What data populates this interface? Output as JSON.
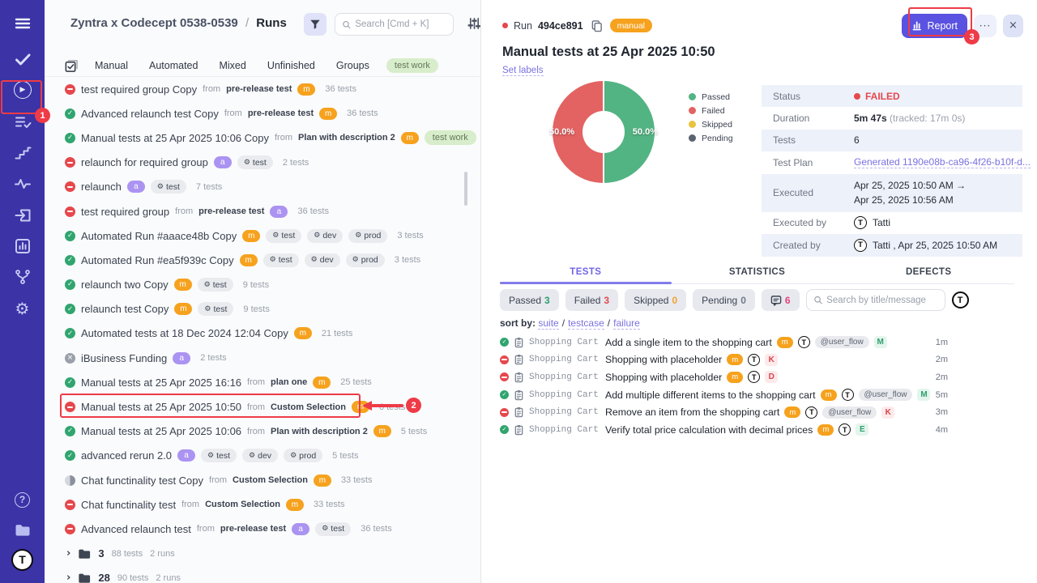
{
  "icons": {
    "check": "✓",
    "close": "×",
    "chevron_right": "›",
    "more_dots": "···",
    "play": "▶",
    "gear": "⚙",
    "question": "?",
    "avatar_letter": "T"
  },
  "annotations": {
    "step1": "1",
    "step2": "2",
    "step3": "3"
  },
  "left_panel": {
    "header": {
      "project": "Zyntra x Codecept 0538-0539",
      "separator": "/",
      "section": "Runs",
      "search_placeholder": "Search [Cmd + K]"
    },
    "tabs": [
      "Manual",
      "Automated",
      "Mixed",
      "Unfinished",
      "Groups"
    ],
    "tag_filter": "test work",
    "from_label": "from",
    "runs": [
      {
        "status": "failed",
        "name": "test required group Copy",
        "from": "pre-release test",
        "type": "m",
        "envs": [],
        "tag": null,
        "tests": "36 tests"
      },
      {
        "status": "passed",
        "name": "Advanced relaunch test Copy",
        "from": "pre-release test",
        "type": "m",
        "envs": [],
        "tag": null,
        "tests": "36 tests"
      },
      {
        "status": "passed",
        "name": "Manual tests at 25 Apr 2025 10:06 Copy",
        "from": "Plan with description 2",
        "type": "m",
        "envs": [],
        "tag": "test work",
        "tests": "5 tests"
      },
      {
        "status": "failed",
        "name": "relaunch for required group",
        "from": null,
        "type": "a",
        "envs": [
          "test"
        ],
        "tag": null,
        "tests": "2 tests"
      },
      {
        "status": "failed",
        "name": "relaunch",
        "from": null,
        "type": "a",
        "envs": [
          "test"
        ],
        "tag": null,
        "tests": "7 tests"
      },
      {
        "status": "failed",
        "name": "test required group",
        "from": "pre-release test",
        "type": "a",
        "envs": [],
        "tag": null,
        "tests": "36 tests"
      },
      {
        "status": "passed",
        "name": "Automated Run #aaace48b Copy",
        "from": null,
        "type": "m",
        "envs": [
          "test",
          "dev",
          "prod"
        ],
        "tag": null,
        "tests": "3 tests"
      },
      {
        "status": "passed",
        "name": "Automated Run #ea5f939c Copy",
        "from": null,
        "type": "m",
        "envs": [
          "test",
          "dev",
          "prod"
        ],
        "tag": null,
        "tests": "3 tests"
      },
      {
        "status": "passed",
        "name": "relaunch two Copy",
        "from": null,
        "type": "m",
        "envs": [
          "test"
        ],
        "tag": null,
        "tests": "9 tests"
      },
      {
        "status": "passed",
        "name": "relaunch test Copy",
        "from": null,
        "type": "m",
        "envs": [
          "test"
        ],
        "tag": null,
        "tests": "9 tests"
      },
      {
        "status": "passed",
        "name": "Automated tests at 18 Dec 2024 12:04 Copy",
        "from": null,
        "type": "m",
        "envs": [],
        "tag": null,
        "tests": "21 tests"
      },
      {
        "status": "canceled",
        "name": "iBusiness Funding",
        "from": null,
        "type": "a",
        "envs": [],
        "tag": null,
        "tests": "2 tests"
      },
      {
        "status": "passed",
        "name": "Manual tests at 25 Apr 2025 16:16",
        "from": "plan one",
        "type": "m",
        "envs": [],
        "tag": null,
        "tests": "25 tests"
      },
      {
        "status": "failed",
        "name": "Manual tests at 25 Apr 2025 10:50",
        "from": "Custom Selection",
        "type": "m",
        "envs": [],
        "tag": null,
        "tests": "6 tests",
        "highlight": true
      },
      {
        "status": "passed",
        "name": "Manual tests at 25 Apr 2025 10:06",
        "from": "Plan with description 2",
        "type": "m",
        "envs": [],
        "tag": null,
        "tests": "5 tests"
      },
      {
        "status": "passed",
        "name": "advanced rerun 2.0",
        "from": null,
        "type": "a",
        "envs": [
          "test",
          "dev",
          "prod"
        ],
        "tag": null,
        "tests": "5 tests"
      },
      {
        "status": "partial",
        "name": "Chat functinality test Copy",
        "from": "Custom Selection",
        "type": "m",
        "envs": [],
        "tag": null,
        "tests": "33 tests"
      },
      {
        "status": "failed",
        "name": "Chat functinality test",
        "from": "Custom Selection",
        "type": "m",
        "envs": [],
        "tag": null,
        "tests": "33 tests"
      },
      {
        "status": "failed",
        "name": "Advanced relaunch test",
        "from": "pre-release test",
        "type": "a",
        "envs": [
          "test"
        ],
        "tag": null,
        "tests": "36 tests"
      }
    ],
    "folders": [
      {
        "name": "3",
        "tests": "88 tests",
        "runs": "2 runs"
      },
      {
        "name": "28",
        "tests": "90 tests",
        "runs": "2 runs"
      }
    ]
  },
  "right_panel": {
    "run_label": "Run",
    "run_id": "494ce891",
    "type_badge": "manual",
    "report_button": "Report",
    "title": "Manual tests at 25 Apr 2025 10:50",
    "set_labels": "Set labels",
    "chart_data": {
      "type": "pie",
      "title": "Run results donut",
      "labels": [
        "Passed",
        "Failed",
        "Skipped",
        "Pending"
      ],
      "values": [
        50.0,
        50.0,
        0.0,
        0.0
      ],
      "colors": [
        "#53b483",
        "#e36262",
        "#e8c33d",
        "#5b6370"
      ],
      "slice_labels": [
        "50.0%",
        "50.0%"
      ],
      "legend_position": "right"
    },
    "info": [
      {
        "label": "Status",
        "type": "status",
        "text": "FAILED"
      },
      {
        "label": "Duration",
        "type": "duration",
        "main": "5m 47s",
        "note": "(tracked: 17m 0s)"
      },
      {
        "label": "Tests",
        "type": "text",
        "text": "6"
      },
      {
        "label": "Test Plan",
        "type": "link",
        "text": "Generated 1190e08b-ca96-4f26-b10f-d..."
      },
      {
        "label": "Executed",
        "type": "range",
        "line1": "Apr 25, 2025 10:50 AM →",
        "line2": "Apr 25, 2025 10:56 AM"
      },
      {
        "label": "Executed by",
        "type": "user",
        "text": "Tatti"
      },
      {
        "label": "Created by",
        "type": "user",
        "text": "Tatti , Apr 25, 2025 10:50 AM"
      }
    ],
    "tabs": [
      {
        "label": "TESTS",
        "active": true
      },
      {
        "label": "STATISTICS",
        "active": false
      },
      {
        "label": "DEFECTS",
        "active": false
      }
    ],
    "filters": [
      {
        "label": "Passed",
        "count": "3",
        "color": "#2f9e6e"
      },
      {
        "label": "Failed",
        "count": "3",
        "color": "#e0484f"
      },
      {
        "label": "Skipped",
        "count": "0",
        "color": "#f0a32e"
      },
      {
        "label": "Pending",
        "count": "0",
        "color": "#737a86"
      }
    ],
    "comment_filter": {
      "count": "6",
      "color": "#e0447d"
    },
    "search_placeholder": "Search by title/message",
    "sort": {
      "label": "sort by:",
      "separator": "/",
      "options": [
        "suite",
        "testcase",
        "failure"
      ]
    },
    "tests": [
      {
        "status": "passed",
        "suite": "Shopping Cart...",
        "title": "Add a single item to the shopping cart",
        "type": "m",
        "avatar": true,
        "tag": "@user_flow",
        "letter": "M",
        "letter_color": "green",
        "duration": "1m"
      },
      {
        "status": "failed",
        "suite": "Shopping Cart...",
        "title": "Shopping with placeholder",
        "type": "m",
        "avatar": true,
        "tag": null,
        "letter": "K",
        "letter_color": "red",
        "duration": "2m"
      },
      {
        "status": "failed",
        "suite": "Shopping Cart...",
        "title": "Shopping with placeholder",
        "type": "m",
        "avatar": true,
        "tag": null,
        "letter": "D",
        "letter_color": "red",
        "duration": "2m"
      },
      {
        "status": "passed",
        "suite": "Shopping Cart...",
        "title": "Add multiple different items to the shopping cart",
        "type": "m",
        "avatar": true,
        "tag": "@user_flow",
        "letter": "M",
        "letter_color": "green",
        "duration": "5m"
      },
      {
        "status": "failed",
        "suite": "Shopping Cart...",
        "title": "Remove an item from the shopping cart",
        "type": "m",
        "avatar": true,
        "tag": "@user_flow",
        "letter": "K",
        "letter_color": "red",
        "duration": "3m"
      },
      {
        "status": "passed",
        "suite": "Shopping Cart...",
        "title": "Verify total price calculation with decimal prices",
        "type": "m",
        "avatar": true,
        "tag": null,
        "letter": "E",
        "letter_color": "green",
        "duration": "4m"
      }
    ]
  }
}
